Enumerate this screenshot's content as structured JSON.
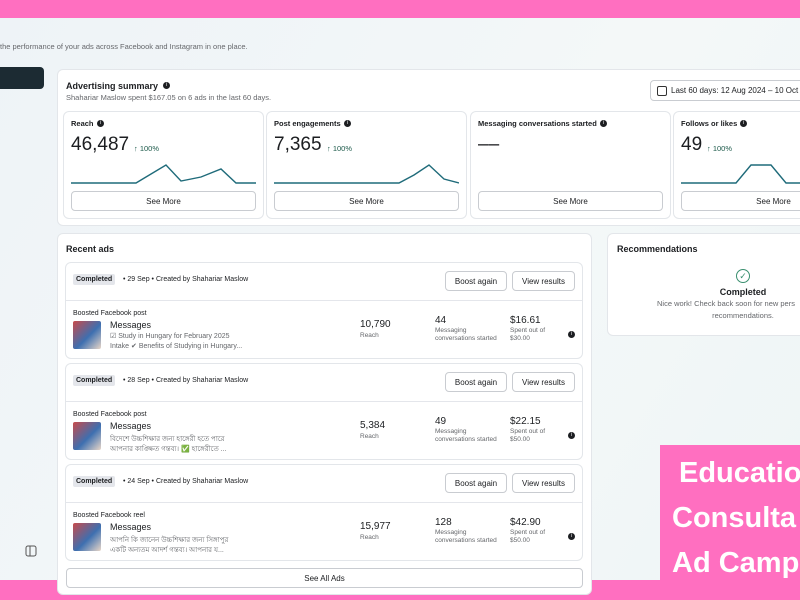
{
  "header": {
    "subtitle": "the performance of your ads across Facebook and Instagram in one place."
  },
  "summary": {
    "title": "Advertising summary",
    "description": "Shahariar Maslow spent $167.05 on 6 ads in the last 60 days.",
    "date_range": "Last 60 days: 12 Aug 2024 – 10 Oct",
    "metrics": [
      {
        "label": "Reach",
        "value": "46,487",
        "change": "↑ 100%",
        "button": "See More"
      },
      {
        "label": "Post engagements",
        "value": "7,365",
        "change": "↑ 100%",
        "button": "See More"
      },
      {
        "label": "Messaging conversations started",
        "value": "––",
        "button": "See More"
      },
      {
        "label": "Follows or likes",
        "value": "49",
        "change": "↑ 100%",
        "button": "See More"
      }
    ]
  },
  "recent_ads": {
    "title": "Recent ads",
    "see_all": "See All Ads",
    "ads": [
      {
        "status": "Completed",
        "date": "29 Sep",
        "creator": "Created by Shahariar Maslow",
        "boost": "Boost again",
        "view": "View results",
        "type": "Boosted Facebook post",
        "name": "Messages",
        "line1": "☑ Study in Hungary for February 2025",
        "line2": "Intake ✔ Benefits of Studying in Hungary...",
        "reach": "10,790",
        "reach_label": "Reach",
        "results": "44",
        "results_label": "Messaging conversations started",
        "spend": "$16.61",
        "spend_label": "Spent out of",
        "budget": "$30.00"
      },
      {
        "status": "Completed",
        "date": "28 Sep",
        "creator": "Created by Shahariar Maslow",
        "boost": "Boost again",
        "view": "View results",
        "type": "Boosted Facebook post",
        "name": "Messages",
        "line1": "বিদেশে উচ্চশিক্ষার জন্য হাঙ্গেরী হতে পারে",
        "line2": "আপনার কাঙ্ক্ষিত গন্তব্য। ✅ হাঙ্গেরীতে ...",
        "reach": "5,384",
        "reach_label": "Reach",
        "results": "49",
        "results_label": "Messaging conversations started",
        "spend": "$22.15",
        "spend_label": "Spent out of",
        "budget": "$50.00"
      },
      {
        "status": "Completed",
        "date": "24 Sep",
        "creator": "Created by Shahariar Maslow",
        "boost": "Boost again",
        "view": "View results",
        "type": "Boosted Facebook reel",
        "name": "Messages",
        "line1": "আপনি কি জানেন উচ্চশিক্ষার জন্য সিঙ্গাপুর",
        "line2": "একটি অন্যতম আদর্শ গন্তব্য। আপনার য...",
        "reach": "15,977",
        "reach_label": "Reach",
        "results": "128",
        "results_label": "Messaging conversations started",
        "spend": "$42.90",
        "spend_label": "Spent out of",
        "budget": "$50.00"
      }
    ]
  },
  "recommendations": {
    "title": "Recommendations",
    "status": "Completed",
    "line1": "Nice work! Check back soon for new pers",
    "line2": "recommendations."
  },
  "banner": {
    "lines": [
      "Educatio",
      "Consulta",
      "Ad Camp"
    ]
  }
}
